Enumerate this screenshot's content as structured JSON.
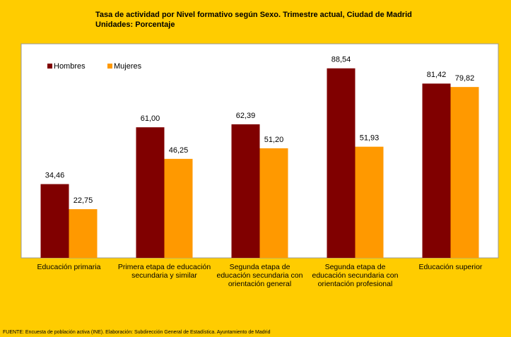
{
  "chart_data": {
    "type": "bar",
    "title": "Tasa de actividad por Nivel formativo según Sexo. Trimestre actual, Ciudad de Madrid",
    "subtitle": "Unidades: Porcentaje",
    "categories": [
      "Educación primaria",
      "Primera etapa de educación secundaria y similar",
      "Segunda etapa de educación secundaria con orientación general",
      "Segunda etapa de educación secundaria con orientación profesional",
      "Educación superior"
    ],
    "series": [
      {
        "name": "Hombres",
        "color": "#800000",
        "values": [
          34.46,
          61.0,
          62.39,
          88.54,
          81.42
        ],
        "value_labels": [
          "34,46",
          "61,00",
          "62,39",
          "88,54",
          "81,42"
        ]
      },
      {
        "name": "Mujeres",
        "color": "#FF9900",
        "values": [
          22.75,
          46.25,
          51.2,
          51.93,
          79.82
        ],
        "value_labels": [
          "22,75",
          "46,25",
          "51,20",
          "51,93",
          "79,82"
        ]
      }
    ],
    "ylim": [
      0,
      100
    ],
    "legend": "top-left",
    "source": "FUENTE: Encuesta de población activa (INE). Elaboración: Subdirección General de Estadística. Ayuntamiento de Madrid"
  }
}
